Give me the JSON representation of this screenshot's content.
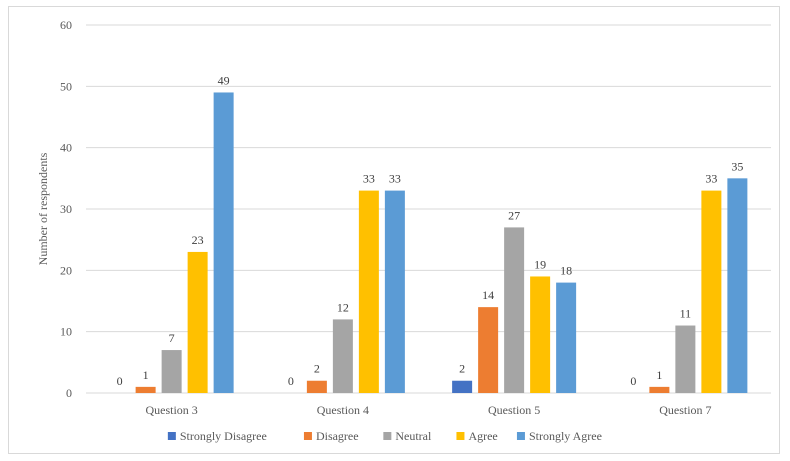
{
  "chart_data": {
    "type": "bar",
    "title": "",
    "xlabel": "",
    "ylabel": "Number of respondents",
    "ylim": [
      0,
      60
    ],
    "yticks": [
      0,
      10,
      20,
      30,
      40,
      50,
      60
    ],
    "categories": [
      "Question 3",
      "Question 4",
      "Question 5",
      "Question 7"
    ],
    "series": [
      {
        "name": "Strongly Disagree",
        "color": "#4472C4",
        "values": [
          0,
          0,
          2,
          0
        ]
      },
      {
        "name": "Disagree",
        "color": "#ED7D31",
        "values": [
          1,
          2,
          14,
          1
        ]
      },
      {
        "name": "Neutral",
        "color": "#A5A5A5",
        "values": [
          7,
          12,
          27,
          11
        ]
      },
      {
        "name": "Agree",
        "color": "#FFC000",
        "values": [
          23,
          33,
          19,
          33
        ]
      },
      {
        "name": "Strongly Agree",
        "color": "#5B9BD5",
        "values": [
          49,
          33,
          18,
          35
        ]
      }
    ],
    "grid": true,
    "legend_position": "bottom",
    "data_labels": true
  }
}
